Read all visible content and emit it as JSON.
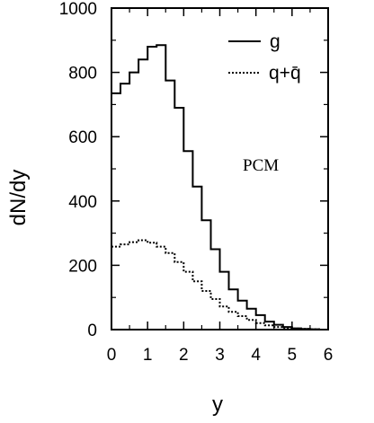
{
  "chart_data": {
    "type": "line",
    "step": true,
    "xlabel": "y",
    "ylabel": "dN/dy",
    "xlim": [
      0,
      6
    ],
    "ylim": [
      0,
      1000
    ],
    "xticks": [
      "0",
      "1",
      "2",
      "3",
      "4",
      "5",
      "6"
    ],
    "yticks": [
      "0",
      "200",
      "400",
      "600",
      "800",
      "1000"
    ],
    "grid": false,
    "legend_position": "top-right",
    "annotation": "PCM",
    "bin_edges": [
      0,
      0.25,
      0.5,
      0.75,
      1.0,
      1.25,
      1.5,
      1.75,
      2.0,
      2.25,
      2.5,
      2.75,
      3.0,
      3.25,
      3.5,
      3.75,
      4.0,
      4.25,
      4.5,
      4.75,
      5.0,
      5.25,
      5.5,
      5.75,
      6.0
    ],
    "series": [
      {
        "name": "g",
        "style": "solid",
        "values": [
          735,
          765,
          800,
          840,
          880,
          885,
          775,
          690,
          555,
          445,
          340,
          250,
          180,
          125,
          90,
          65,
          45,
          25,
          15,
          8,
          4,
          2,
          1,
          0
        ]
      },
      {
        "name": "q+q̄",
        "style": "dotted",
        "values": [
          258,
          265,
          272,
          278,
          270,
          258,
          238,
          210,
          180,
          150,
          120,
          95,
          72,
          55,
          42,
          30,
          20,
          13,
          8,
          5,
          3,
          2,
          1,
          0
        ]
      }
    ]
  }
}
